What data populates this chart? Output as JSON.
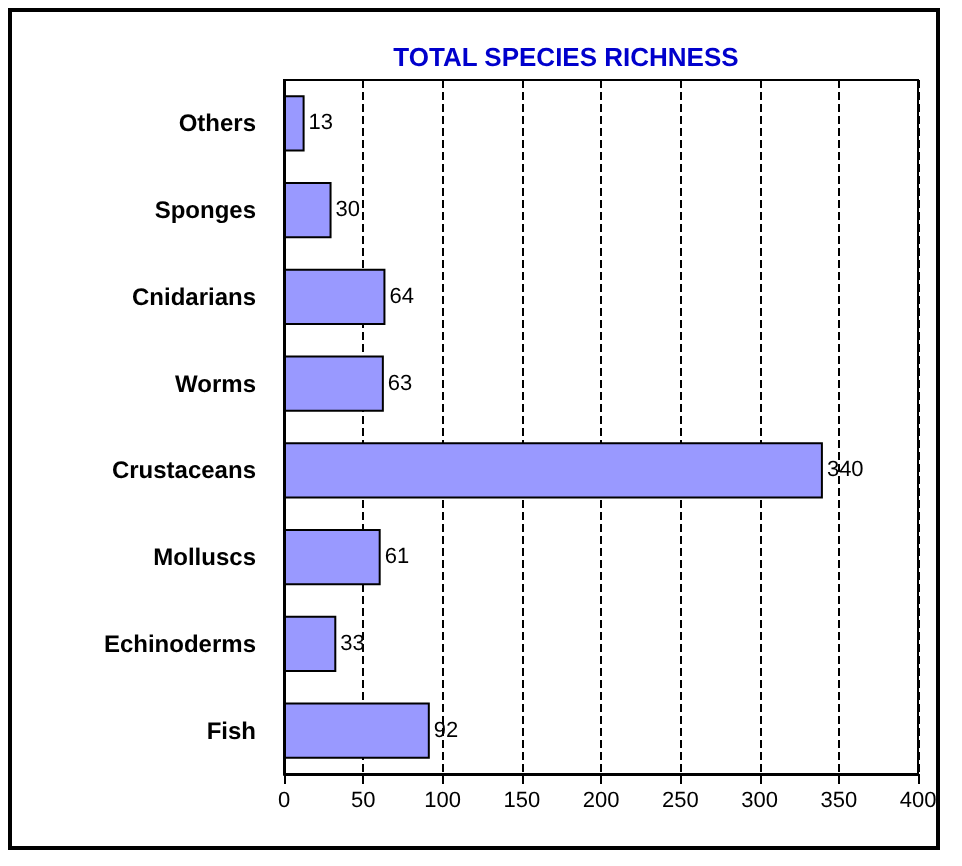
{
  "chart_data": {
    "type": "bar",
    "orientation": "horizontal",
    "title": "TOTAL SPECIES RICHNESS",
    "categories": [
      "Others",
      "Sponges",
      "Cnidarians",
      "Worms",
      "Crustaceans",
      "Molluscs",
      "Echinoderms",
      "Fish"
    ],
    "values": [
      13,
      30,
      64,
      63,
      340,
      61,
      33,
      92
    ],
    "color": "#9999ff",
    "xlim": [
      0,
      400
    ],
    "xticks": [
      0,
      50,
      100,
      150,
      200,
      250,
      300,
      350,
      400
    ],
    "grid": "x",
    "data_labels": true
  }
}
